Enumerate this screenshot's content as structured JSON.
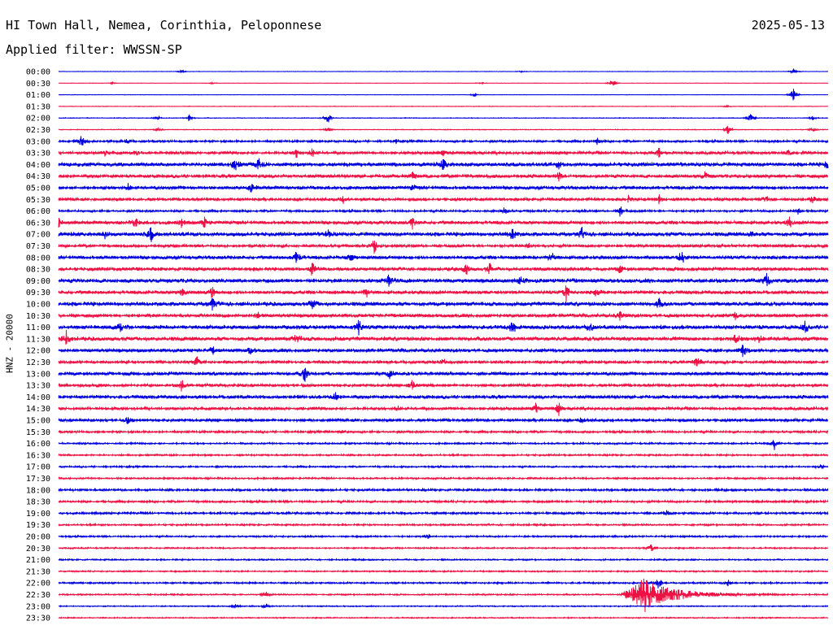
{
  "header": {
    "station": "HI Town Hall, Nemea, Corinthia, Peloponnese",
    "date": "2025-05-13",
    "filter": "Applied filter: WWSSN-SP",
    "channel_label": "HNZ - 20000"
  },
  "colors": {
    "blue": "#0000dd",
    "red": "#ee1144"
  },
  "chart_data": {
    "type": "line",
    "title": "HI Town Hall, Nemea, Corinthia, Peloponnese",
    "ylabel": "HNZ - 20000",
    "xlabel": "",
    "row_interval_minutes": 30,
    "rows": [
      {
        "time": "00:00",
        "color": "blue",
        "noise": 0.3,
        "events": [
          [
            0.16,
            2
          ],
          [
            0.6,
            1.2
          ],
          [
            0.955,
            4
          ]
        ]
      },
      {
        "time": "00:30",
        "color": "red",
        "noise": 0.3,
        "events": [
          [
            0.07,
            1
          ],
          [
            0.2,
            1
          ],
          [
            0.55,
            1
          ],
          [
            0.72,
            7
          ]
        ]
      },
      {
        "time": "01:00",
        "color": "blue",
        "noise": 0.3,
        "events": [
          [
            0.54,
            2
          ],
          [
            0.955,
            12
          ]
        ]
      },
      {
        "time": "01:30",
        "color": "red",
        "noise": 0.4,
        "events": [
          [
            0.87,
            2
          ]
        ]
      },
      {
        "time": "02:00",
        "color": "blue",
        "noise": 0.5,
        "events": [
          [
            0.13,
            3
          ],
          [
            0.17,
            5
          ],
          [
            0.35,
            8
          ],
          [
            0.9,
            8
          ],
          [
            0.98,
            3
          ]
        ]
      },
      {
        "time": "02:30",
        "color": "red",
        "noise": 0.5,
        "events": [
          [
            0.13,
            2
          ],
          [
            0.35,
            3
          ],
          [
            0.87,
            6
          ],
          [
            0.98,
            3
          ]
        ]
      },
      {
        "time": "03:00",
        "color": "blue",
        "noise": 1.5,
        "events": [
          [
            0.03,
            10
          ],
          [
            0.09,
            4
          ],
          [
            0.44,
            3
          ],
          [
            0.7,
            4
          ],
          [
            0.93,
            3
          ]
        ]
      },
      {
        "time": "03:30",
        "color": "red",
        "noise": 2,
        "events": [
          [
            0.06,
            4
          ],
          [
            0.1,
            3
          ],
          [
            0.31,
            7
          ],
          [
            0.33,
            6
          ],
          [
            0.5,
            4
          ],
          [
            0.78,
            7
          ],
          [
            0.95,
            5
          ]
        ]
      },
      {
        "time": "04:00",
        "color": "blue",
        "noise": 3,
        "events": [
          [
            0.23,
            9
          ],
          [
            0.26,
            7
          ],
          [
            0.5,
            7
          ],
          [
            0.65,
            4
          ],
          [
            1.0,
            7
          ]
        ]
      },
      {
        "time": "04:30",
        "color": "red",
        "noise": 2.5,
        "events": [
          [
            0.46,
            7
          ],
          [
            0.65,
            5
          ],
          [
            0.84,
            6
          ]
        ]
      },
      {
        "time": "05:00",
        "color": "blue",
        "noise": 2.5,
        "events": [
          [
            0.09,
            5
          ],
          [
            0.25,
            7
          ],
          [
            0.46,
            4
          ]
        ]
      },
      {
        "time": "05:30",
        "color": "red",
        "noise": 2,
        "events": [
          [
            0.37,
            5
          ],
          [
            0.74,
            5
          ],
          [
            0.78,
            7
          ],
          [
            0.92,
            4
          ],
          [
            0.98,
            4
          ]
        ]
      },
      {
        "time": "06:00",
        "color": "blue",
        "noise": 1.5,
        "events": [
          [
            0.58,
            6
          ],
          [
            0.73,
            7
          ],
          [
            0.96,
            5
          ]
        ]
      },
      {
        "time": "06:30",
        "color": "red",
        "noise": 2.5,
        "events": [
          [
            0.0,
            7
          ],
          [
            0.1,
            7
          ],
          [
            0.16,
            6
          ],
          [
            0.19,
            7
          ],
          [
            0.46,
            7
          ],
          [
            0.95,
            7
          ]
        ]
      },
      {
        "time": "07:00",
        "color": "blue",
        "noise": 3,
        "events": [
          [
            0.06,
            4
          ],
          [
            0.12,
            9
          ],
          [
            0.35,
            6
          ],
          [
            0.59,
            8
          ],
          [
            0.68,
            7
          ],
          [
            0.9,
            5
          ]
        ]
      },
      {
        "time": "07:30",
        "color": "red",
        "noise": 2,
        "events": [
          [
            0.41,
            10
          ],
          [
            0.61,
            4
          ]
        ]
      },
      {
        "time": "08:00",
        "color": "blue",
        "noise": 2.5,
        "events": [
          [
            0.31,
            10
          ],
          [
            0.38,
            5
          ],
          [
            0.64,
            9
          ],
          [
            0.81,
            10
          ]
        ]
      },
      {
        "time": "08:30",
        "color": "red",
        "noise": 2.5,
        "events": [
          [
            0.33,
            9
          ],
          [
            0.53,
            7
          ],
          [
            0.56,
            8
          ],
          [
            0.73,
            5
          ]
        ]
      },
      {
        "time": "09:00",
        "color": "blue",
        "noise": 3,
        "events": [
          [
            0.43,
            10
          ],
          [
            0.6,
            5
          ],
          [
            0.92,
            8
          ]
        ]
      },
      {
        "time": "09:30",
        "color": "red",
        "noise": 2.5,
        "events": [
          [
            0.16,
            5
          ],
          [
            0.2,
            9
          ],
          [
            0.4,
            7
          ],
          [
            0.66,
            12
          ],
          [
            0.7,
            6
          ]
        ]
      },
      {
        "time": "10:00",
        "color": "blue",
        "noise": 3,
        "events": [
          [
            0.2,
            8
          ],
          [
            0.33,
            8
          ],
          [
            0.78,
            6
          ]
        ]
      },
      {
        "time": "10:30",
        "color": "red",
        "noise": 2.5,
        "events": [
          [
            0.26,
            4
          ],
          [
            0.73,
            7
          ],
          [
            0.88,
            6
          ]
        ]
      },
      {
        "time": "11:00",
        "color": "blue",
        "noise": 3,
        "events": [
          [
            0.08,
            5
          ],
          [
            0.39,
            12
          ],
          [
            0.59,
            8
          ],
          [
            0.69,
            7
          ],
          [
            0.97,
            7
          ]
        ]
      },
      {
        "time": "11:30",
        "color": "red",
        "noise": 3,
        "events": [
          [
            0.01,
            9
          ],
          [
            0.31,
            8
          ],
          [
            0.88,
            7
          ],
          [
            0.91,
            6
          ]
        ]
      },
      {
        "time": "12:00",
        "color": "blue",
        "noise": 2.5,
        "events": [
          [
            0.2,
            5
          ],
          [
            0.25,
            6
          ],
          [
            0.89,
            10
          ]
        ]
      },
      {
        "time": "12:30",
        "color": "red",
        "noise": 2,
        "events": [
          [
            0.18,
            7
          ],
          [
            0.5,
            4
          ],
          [
            0.83,
            11
          ]
        ]
      },
      {
        "time": "13:00",
        "color": "blue",
        "noise": 2.5,
        "events": [
          [
            0.32,
            10
          ],
          [
            0.43,
            6
          ]
        ]
      },
      {
        "time": "13:30",
        "color": "red",
        "noise": 2,
        "events": [
          [
            0.16,
            8
          ],
          [
            0.46,
            7
          ]
        ]
      },
      {
        "time": "14:00",
        "color": "blue",
        "noise": 2.5,
        "events": [
          [
            0.36,
            9
          ]
        ]
      },
      {
        "time": "14:30",
        "color": "red",
        "noise": 2,
        "events": [
          [
            0.44,
            4
          ],
          [
            0.62,
            7
          ],
          [
            0.65,
            8
          ]
        ]
      },
      {
        "time": "15:00",
        "color": "blue",
        "noise": 2,
        "events": [
          [
            0.09,
            5
          ],
          [
            0.68,
            5
          ]
        ]
      },
      {
        "time": "15:30",
        "color": "red",
        "noise": 1.5,
        "events": [
          [
            0.37,
            3
          ]
        ]
      },
      {
        "time": "16:00",
        "color": "blue",
        "noise": 1.2,
        "events": [
          [
            0.93,
            9
          ]
        ]
      },
      {
        "time": "16:30",
        "color": "red",
        "noise": 1.2,
        "events": []
      },
      {
        "time": "17:00",
        "color": "blue",
        "noise": 1.2,
        "events": [
          [
            0.99,
            3
          ]
        ]
      },
      {
        "time": "17:30",
        "color": "red",
        "noise": 1.2,
        "events": []
      },
      {
        "time": "18:00",
        "color": "blue",
        "noise": 1.5,
        "events": []
      },
      {
        "time": "18:30",
        "color": "red",
        "noise": 1.5,
        "events": []
      },
      {
        "time": "19:00",
        "color": "blue",
        "noise": 1.5,
        "events": [
          [
            0.79,
            4
          ]
        ]
      },
      {
        "time": "19:30",
        "color": "red",
        "noise": 1.2,
        "events": []
      },
      {
        "time": "20:00",
        "color": "blue",
        "noise": 1.2,
        "events": [
          [
            0.48,
            3
          ]
        ]
      },
      {
        "time": "20:30",
        "color": "red",
        "noise": 1,
        "events": [
          [
            0.77,
            6
          ]
        ]
      },
      {
        "time": "21:00",
        "color": "blue",
        "noise": 1,
        "events": []
      },
      {
        "time": "21:30",
        "color": "red",
        "noise": 1,
        "events": []
      },
      {
        "time": "22:00",
        "color": "blue",
        "noise": 1.2,
        "events": [
          [
            0.78,
            8
          ],
          [
            0.87,
            4
          ]
        ]
      },
      {
        "time": "22:30",
        "color": "red",
        "noise": 1,
        "events": [
          [
            0.27,
            3
          ],
          [
            0.76,
            16
          ]
        ],
        "quake": {
          "start": 0.73,
          "peak": 0.76,
          "amp": 18,
          "decay": 0.12
        }
      },
      {
        "time": "23:00",
        "color": "blue",
        "noise": 0.8,
        "events": [
          [
            0.23,
            3
          ],
          [
            0.27,
            3
          ]
        ]
      },
      {
        "time": "23:30",
        "color": "red",
        "noise": 0.8,
        "events": []
      }
    ]
  }
}
